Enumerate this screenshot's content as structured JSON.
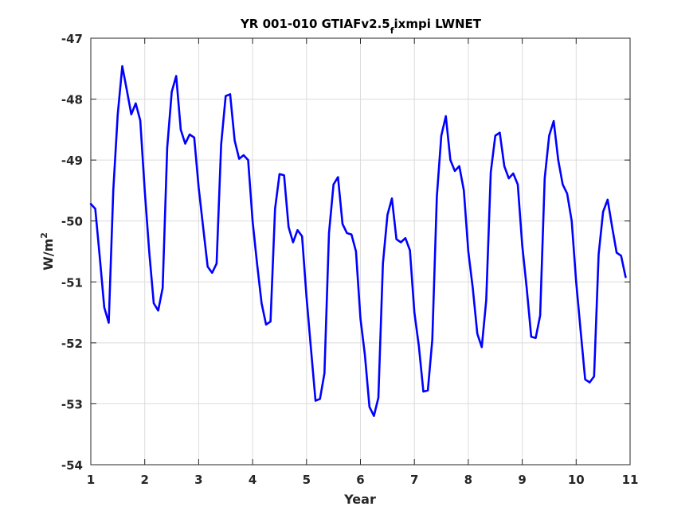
{
  "chart_data": {
    "type": "line",
    "title_main": "YR 001-010 GTIAFv2.5",
    "title_sub": "f",
    "title_rest": "ixmpi LWNET",
    "xlabel": "Year",
    "ylabel_main": "W/m",
    "ylabel_sup": "2",
    "xlim": [
      1,
      11
    ],
    "ylim": [
      -54,
      -47
    ],
    "xticks": [
      1,
      2,
      3,
      4,
      5,
      6,
      7,
      8,
      9,
      10,
      11
    ],
    "yticks": [
      -54,
      -53,
      -52,
      -51,
      -50,
      -49,
      -48,
      -47
    ],
    "grid": true,
    "series": [
      {
        "color": "#0000ff",
        "x": [
          1.0,
          1.083,
          1.167,
          1.25,
          1.333,
          1.417,
          1.5,
          1.583,
          1.667,
          1.75,
          1.833,
          1.917,
          2.0,
          2.083,
          2.167,
          2.25,
          2.333,
          2.417,
          2.5,
          2.583,
          2.667,
          2.75,
          2.833,
          2.917,
          3.0,
          3.083,
          3.167,
          3.25,
          3.333,
          3.417,
          3.5,
          3.583,
          3.667,
          3.75,
          3.833,
          3.917,
          4.0,
          4.083,
          4.167,
          4.25,
          4.333,
          4.417,
          4.5,
          4.583,
          4.667,
          4.75,
          4.833,
          4.917,
          5.0,
          5.083,
          5.167,
          5.25,
          5.333,
          5.417,
          5.5,
          5.583,
          5.667,
          5.75,
          5.833,
          5.917,
          6.0,
          6.083,
          6.167,
          6.25,
          6.333,
          6.417,
          6.5,
          6.583,
          6.667,
          6.75,
          6.833,
          6.917,
          7.0,
          7.083,
          7.167,
          7.25,
          7.333,
          7.417,
          7.5,
          7.583,
          7.667,
          7.75,
          7.833,
          7.917,
          8.0,
          8.083,
          8.167,
          8.25,
          8.333,
          8.417,
          8.5,
          8.583,
          8.667,
          8.75,
          8.833,
          8.917,
          9.0,
          9.083,
          9.167,
          9.25,
          9.333,
          9.417,
          9.5,
          9.583,
          9.667,
          9.75,
          9.833,
          9.917,
          10.0,
          10.083,
          10.167,
          10.25,
          10.333,
          10.417,
          10.5,
          10.583,
          10.667,
          10.75,
          10.833,
          10.917
        ],
        "y": [
          -49.72,
          -49.8,
          -50.6,
          -51.42,
          -51.67,
          -49.5,
          -48.25,
          -47.46,
          -47.85,
          -48.25,
          -48.07,
          -48.35,
          -49.5,
          -50.5,
          -51.35,
          -51.47,
          -51.1,
          -48.8,
          -47.88,
          -47.62,
          -48.5,
          -48.73,
          -48.58,
          -48.63,
          -49.45,
          -50.1,
          -50.75,
          -50.85,
          -50.7,
          -48.75,
          -47.95,
          -47.92,
          -48.68,
          -48.98,
          -48.92,
          -49.0,
          -50.0,
          -50.7,
          -51.35,
          -51.7,
          -51.65,
          -49.8,
          -49.23,
          -49.25,
          -50.1,
          -50.35,
          -50.15,
          -50.25,
          -51.25,
          -52.1,
          -52.95,
          -52.92,
          -52.5,
          -50.2,
          -49.4,
          -49.28,
          -50.05,
          -50.2,
          -50.22,
          -50.5,
          -51.6,
          -52.2,
          -53.05,
          -53.2,
          -52.9,
          -50.7,
          -49.9,
          -49.63,
          -50.3,
          -50.35,
          -50.28,
          -50.48,
          -51.5,
          -52.05,
          -52.8,
          -52.78,
          -51.95,
          -49.6,
          -48.6,
          -48.28,
          -49.0,
          -49.18,
          -49.1,
          -49.5,
          -50.5,
          -51.1,
          -51.85,
          -52.07,
          -51.3,
          -49.2,
          -48.6,
          -48.55,
          -49.1,
          -49.3,
          -49.22,
          -49.4,
          -50.4,
          -51.1,
          -51.9,
          -51.92,
          -51.55,
          -49.3,
          -48.6,
          -48.36,
          -49.0,
          -49.4,
          -49.55,
          -50.0,
          -51.0,
          -51.8,
          -52.6,
          -52.65,
          -52.55,
          -50.55,
          -49.85,
          -49.65,
          -50.1,
          -50.52,
          -50.57,
          -50.92
        ]
      }
    ]
  }
}
